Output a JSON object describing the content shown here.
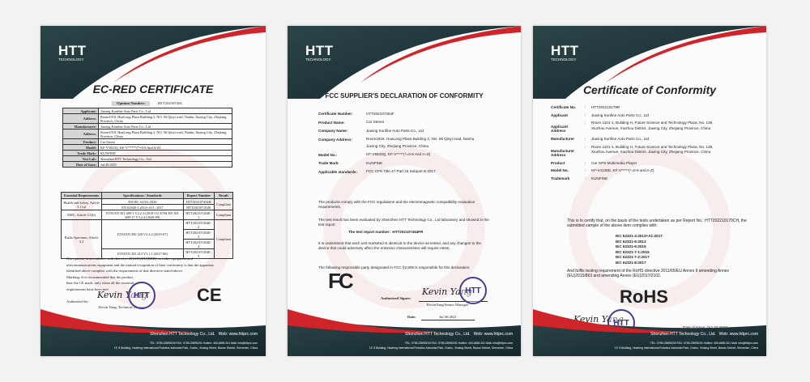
{
  "brand": {
    "name": "HTT",
    "sub": "TECHNOLOGY",
    "accent": "#d0242b",
    "dark": "#1d3135"
  },
  "footer": {
    "company": "Shenzhen HTT Technology Co., Ltd.",
    "web": "Web: www.httprc.com",
    "contact": "TEL: 0755-23595200   FAX: 0755-23595201   Hotline: 400-6655-301   Mail: info@httprc.com",
    "address": "1F, 8 Building, Huafeng International Robotics Industrial Park, Gushu, Xixiang Street, Baoan District, Shenzhen, China"
  },
  "ec": {
    "title": "EC-RED CERTIFICATE",
    "opinion_label": "Opinion Number:",
    "opinion": "HTT202107454",
    "rows": [
      [
        "Applicant:",
        "Jiaxing Kunfine Auto Parts Co., Ltd"
      ],
      [
        "Address:",
        "Room1918, HuaLong Plaza Building 2, NO. 56 Qinyi road, Nanhu, Jiaxing City, Zhejiang Province, China"
      ],
      [
        "Manufacturer:",
        "Jiaxing Kunfine Auto Parts Co., Ltd"
      ],
      [
        "Address:",
        "Room1918, HuaLong Plaza Building 2, NO. 56 Qinyi road, Nanhu, Jiaxing City, Zhejiang Province, China"
      ],
      [
        "Product:",
        "Car Stereo"
      ],
      [
        "Model:",
        "KF-V5843Q, KF-V*****(*=0-9 And A-Z)"
      ],
      [
        "Trade Mark:",
        "KUNFINE"
      ],
      [
        "Test Lab:",
        "Shenzhen HTT Technology Co., Ltd."
      ],
      [
        "Date of Issue:",
        "Jul.30.2021"
      ]
    ],
    "headers": [
      "Essential Requirements",
      "Specifications / Standards",
      "Report Number",
      "Result"
    ],
    "groups": [
      {
        "req": "Health and Safety, Article 3.1 (a)",
        "specs": [
          "EN IEC 62311:2020",
          "EN 62368-1:2014+A11: 2017"
        ],
        "reports": [
          "HTT202107454H",
          "HTT202107454S"
        ],
        "result": "Compliant"
      },
      {
        "req": "EMC, Article 3.1(b)",
        "specs": [
          "ETSI EN 301 489-1 V2.2.3 (2019-11)  ETSI EN 301 489-17 V3.2.4 (2020-09)"
        ],
        "reports": [
          "HTT202107454E-1"
        ],
        "result": "Compliant"
      },
      {
        "req": "Radio Spectrum, Article 3.2",
        "specs": [
          "ETSI EN 300 328 V2.2.2 (2019-07)",
          "ETSI EN 303 413 V1.1.1 (2017-06)"
        ],
        "reports": [
          "HTT202107454E-2",
          "HTT202107454E-3",
          "HTT202107454E-4",
          "HTT202107454E-5"
        ],
        "result": "Compliant"
      }
    ],
    "opinion_text": [
      "Our opinion in accordance with directive 2014/53/EU(RED) on radio equipment and",
      "telecommunications equipment and the mutual recognition of their conformity is that the apparatus",
      "identified above complies with the requirements of that directive stated above.",
      "Marking: It is recommended that the product",
      "bear the CE mark, only when all the essential",
      "requirements have been met."
    ],
    "authorized_label": "Authorized by:",
    "signer": "Kevin Yang, Technical Manager",
    "signature": "Kevin Yang",
    "mark": "CE"
  },
  "fcc": {
    "title": "FCC SUPPLIER'S DECLARATION OF CONFORMITY",
    "rows": [
      [
        "Certificate Number:",
        "HTT202107454F"
      ],
      [
        "Product Name:",
        "Car Stereo"
      ],
      [
        "Company Name:",
        "Jiaxing Kunfine Auto Parts Co., Ltd"
      ],
      [
        "Company Address:",
        "Room1918, HuaLong Plaza Building 2, NO. 56 Qinyi road, Nanhu, Jiaxing City, Zhejiang Province, China"
      ],
      [
        "Model No.:",
        "KF-V5843Q, KF-V*****(*=0-9 And A~Z)"
      ],
      [
        "Trade Mark:",
        "KUNFINE"
      ],
      [
        "Applicable standards:",
        "FCC CFR Title 47 Part 15 Subpart B:2017"
      ]
    ],
    "p1": "The products comply with the FCC regulations and the electromagnetic compatibility evaluation requirements.",
    "p2": "The test result has been evaluated by Shenzhen HTT Technology Co., Ltd laboratory and showed in the test report",
    "report_label": "The test report number:",
    "report": "HTT202107454FR",
    "p3": "It is understood that each unit marketed is identical to the device as tested, and any changes to the device that could adversely affect the emission characteristics will require retest.",
    "p4": "The following responsible party designated in FCC §2.909 is responsible for this declaration:",
    "signer_label": "Authorized Signer:",
    "signer": "KevinYang/Senior Manager",
    "signature": "Kevin Yang",
    "date_label": "Date:",
    "date": "Jul.30.2021",
    "mark": "FC"
  },
  "coc": {
    "title": "Certificate of Conformity",
    "rows": [
      [
        "Certificate No.",
        "HTT202210179R"
      ],
      [
        "Applicant",
        "Jiaxing Kunfine Auto Parts Co., Ltd"
      ],
      [
        "Applicant Address",
        "Room 1101-1, Building H, Future Science and Technology Plaza, No. 136, Xiuzhou Avenue, Xiuzhou District, Jiaxing City, Zhejiang Province, China"
      ],
      [
        "Manufacturer",
        "Jiaxing Kunfine Auto Parts Co., Ltd"
      ],
      [
        "Manufacturer Address",
        "Room 1101-1, Building H, Future Science and Technology Plaza, No. 136, Xiuzhou Avenue, Xiuzhou District, Jiaxing City, Zhejiang Province, China"
      ],
      [
        "Product",
        "Car GPS Multimedia Player"
      ],
      [
        "Model No.",
        "KF-V4139D, KF-V*****(*=0-9 and A-Z)"
      ],
      [
        "Trademark",
        "KUNFINE"
      ]
    ],
    "p1": "This is to certify that, on the basis of the tests undertaken as per Report No.: HTT202210179CH, the submitted sample of the above item complies with:",
    "standards": [
      "IEC 62321-4:2013+A1:2017",
      "IEC 62321-5:2013",
      "IEC 62321-6:2015",
      "IEC 62321-7-1:2015",
      "IEC 62321-7-2:2017",
      "IEC 62321-8:2017"
    ],
    "p2": "And fulfils testing requirement of the RoHS directive 2011/65/EU Annex II amending Annex (EU)2015/863 and amending Annex (EU)2017/2102.",
    "mark": "RoHS",
    "signature": "Kevin Yang",
    "signer": "KevinYang/Senior Manager",
    "date": "Date of Issue: Oct.20,2022"
  }
}
